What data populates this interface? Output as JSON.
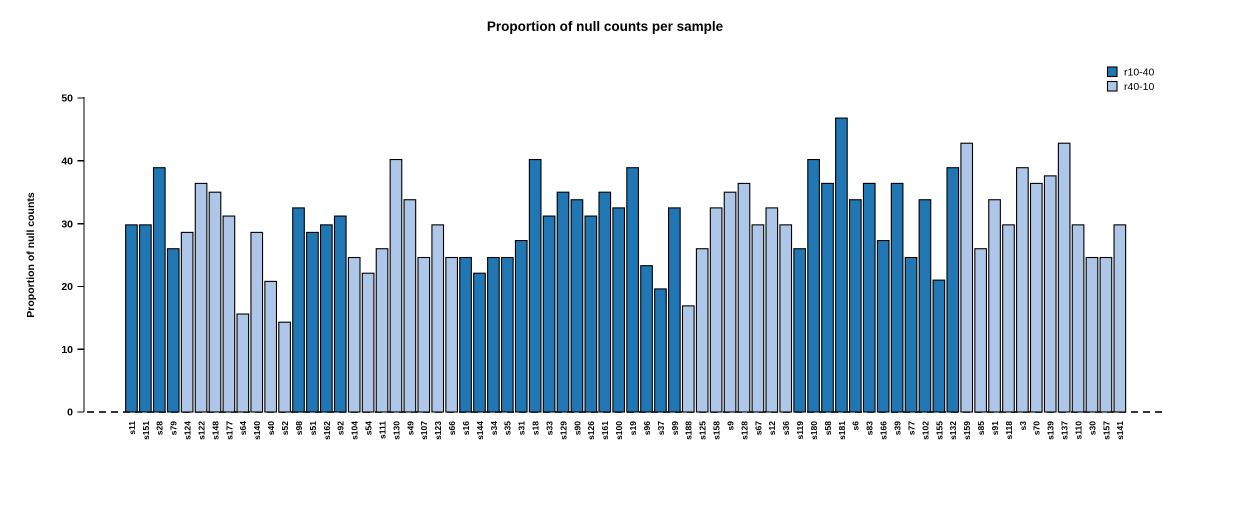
{
  "page": {
    "background": "#ffffff"
  },
  "chart_data": {
    "type": "bar",
    "title": "Proportion of null counts per sample",
    "xlabel": "",
    "ylabel": "Proportion of null counts",
    "ylim": [
      0,
      50
    ],
    "yticks": [
      0,
      10,
      20,
      30,
      40,
      50
    ],
    "grid": false,
    "bar_edge_color": "#000000",
    "zero_line": {
      "y": 0,
      "style": "dashed",
      "color": "#1a1a1a"
    },
    "legend": {
      "position": "top-right",
      "entries": [
        {
          "name": "r10-40",
          "color": "#2077b4"
        },
        {
          "name": "r40-10",
          "color": "#aec7e8"
        }
      ]
    },
    "samples": [
      {
        "id": "s11",
        "group": "r10-40",
        "value": 29.8
      },
      {
        "id": "s151",
        "group": "r10-40",
        "value": 29.8
      },
      {
        "id": "s28",
        "group": "r10-40",
        "value": 38.9
      },
      {
        "id": "s79",
        "group": "r10-40",
        "value": 26.0
      },
      {
        "id": "s124",
        "group": "r40-10",
        "value": 28.6
      },
      {
        "id": "s122",
        "group": "r40-10",
        "value": 36.4
      },
      {
        "id": "s148",
        "group": "r40-10",
        "value": 35.0
      },
      {
        "id": "s177",
        "group": "r40-10",
        "value": 31.2
      },
      {
        "id": "s64",
        "group": "r40-10",
        "value": 15.6
      },
      {
        "id": "s140",
        "group": "r40-10",
        "value": 28.6
      },
      {
        "id": "s40",
        "group": "r40-10",
        "value": 20.8
      },
      {
        "id": "s52",
        "group": "r40-10",
        "value": 14.3
      },
      {
        "id": "s98",
        "group": "r10-40",
        "value": 32.5
      },
      {
        "id": "s51",
        "group": "r10-40",
        "value": 28.6
      },
      {
        "id": "s162",
        "group": "r10-40",
        "value": 29.8
      },
      {
        "id": "s92",
        "group": "r10-40",
        "value": 31.2
      },
      {
        "id": "s104",
        "group": "r40-10",
        "value": 24.6
      },
      {
        "id": "s54",
        "group": "r40-10",
        "value": 22.1
      },
      {
        "id": "s111",
        "group": "r40-10",
        "value": 26.0
      },
      {
        "id": "s130",
        "group": "r40-10",
        "value": 40.2
      },
      {
        "id": "s49",
        "group": "r40-10",
        "value": 33.8
      },
      {
        "id": "s107",
        "group": "r40-10",
        "value": 24.6
      },
      {
        "id": "s123",
        "group": "r40-10",
        "value": 29.8
      },
      {
        "id": "s66",
        "group": "r40-10",
        "value": 24.6
      },
      {
        "id": "s16",
        "group": "r10-40",
        "value": 24.6
      },
      {
        "id": "s144",
        "group": "r10-40",
        "value": 22.1
      },
      {
        "id": "s34",
        "group": "r10-40",
        "value": 24.6
      },
      {
        "id": "s35",
        "group": "r10-40",
        "value": 24.6
      },
      {
        "id": "s31",
        "group": "r10-40",
        "value": 27.3
      },
      {
        "id": "s18",
        "group": "r10-40",
        "value": 40.2
      },
      {
        "id": "s33",
        "group": "r10-40",
        "value": 31.2
      },
      {
        "id": "s129",
        "group": "r10-40",
        "value": 35.0
      },
      {
        "id": "s90",
        "group": "r10-40",
        "value": 33.8
      },
      {
        "id": "s126",
        "group": "r10-40",
        "value": 31.2
      },
      {
        "id": "s161",
        "group": "r10-40",
        "value": 35.0
      },
      {
        "id": "s100",
        "group": "r10-40",
        "value": 32.5
      },
      {
        "id": "s19",
        "group": "r10-40",
        "value": 38.9
      },
      {
        "id": "s96",
        "group": "r10-40",
        "value": 23.3
      },
      {
        "id": "s37",
        "group": "r10-40",
        "value": 19.6
      },
      {
        "id": "s99",
        "group": "r10-40",
        "value": 32.5
      },
      {
        "id": "s188",
        "group": "r40-10",
        "value": 16.9
      },
      {
        "id": "s125",
        "group": "r40-10",
        "value": 26.0
      },
      {
        "id": "s158",
        "group": "r40-10",
        "value": 32.5
      },
      {
        "id": "s9",
        "group": "r40-10",
        "value": 35.0
      },
      {
        "id": "s128",
        "group": "r40-10",
        "value": 36.4
      },
      {
        "id": "s67",
        "group": "r40-10",
        "value": 29.8
      },
      {
        "id": "s12",
        "group": "r40-10",
        "value": 32.5
      },
      {
        "id": "s36",
        "group": "r40-10",
        "value": 29.8
      },
      {
        "id": "s119",
        "group": "r10-40",
        "value": 26.0
      },
      {
        "id": "s180",
        "group": "r10-40",
        "value": 40.2
      },
      {
        "id": "s58",
        "group": "r10-40",
        "value": 36.4
      },
      {
        "id": "s181",
        "group": "r10-40",
        "value": 46.8
      },
      {
        "id": "s6",
        "group": "r10-40",
        "value": 33.8
      },
      {
        "id": "s83",
        "group": "r10-40",
        "value": 36.4
      },
      {
        "id": "s166",
        "group": "r10-40",
        "value": 27.3
      },
      {
        "id": "s39",
        "group": "r10-40",
        "value": 36.4
      },
      {
        "id": "s77",
        "group": "r10-40",
        "value": 24.6
      },
      {
        "id": "s102",
        "group": "r10-40",
        "value": 33.8
      },
      {
        "id": "s155",
        "group": "r10-40",
        "value": 21.0
      },
      {
        "id": "s132",
        "group": "r10-40",
        "value": 38.9
      },
      {
        "id": "s159",
        "group": "r40-10",
        "value": 42.8
      },
      {
        "id": "s85",
        "group": "r40-10",
        "value": 26.0
      },
      {
        "id": "s91",
        "group": "r40-10",
        "value": 33.8
      },
      {
        "id": "s118",
        "group": "r40-10",
        "value": 29.8
      },
      {
        "id": "s3",
        "group": "r40-10",
        "value": 38.9
      },
      {
        "id": "s70",
        "group": "r40-10",
        "value": 36.4
      },
      {
        "id": "s139",
        "group": "r40-10",
        "value": 37.6
      },
      {
        "id": "s137",
        "group": "r40-10",
        "value": 42.8
      },
      {
        "id": "s110",
        "group": "r40-10",
        "value": 29.8
      },
      {
        "id": "s30",
        "group": "r40-10",
        "value": 24.6
      },
      {
        "id": "s157",
        "group": "r40-10",
        "value": 24.6
      },
      {
        "id": "s141",
        "group": "r40-10",
        "value": 29.8
      }
    ]
  }
}
